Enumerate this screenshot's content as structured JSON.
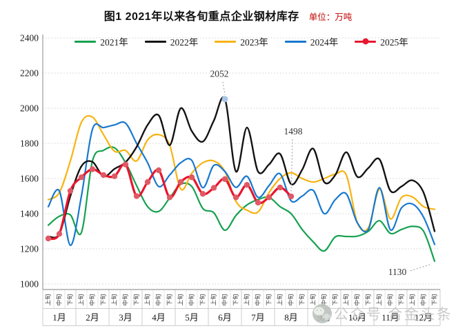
{
  "figure": {
    "title": "图1  2021年以来各旬重点企业钢材库存",
    "unit_label": "单位：万吨"
  },
  "watermark": {
    "icon": "wechat-icon",
    "text": "公众号 合金头条",
    "color": "#c3c6c3"
  },
  "style": {
    "grid_color": "#cfcfcf",
    "axis_color": "#9b9b9b",
    "band_line_color": "#cccccc",
    "cell_line_color": "#dedede",
    "tick_text_color": "#3a3a3a",
    "label_text_color": "#1a1a1a",
    "annotation_text_color": "#333333",
    "leader_color": "#999999"
  },
  "chart_data": {
    "type": "line",
    "title": "图1 2021年以来各旬重点企业钢材库存",
    "unit": "万吨",
    "ylabel": "",
    "xlabel": "",
    "ylim": [
      1000,
      2400
    ],
    "ytick_step": 200,
    "yticks": [
      "2400",
      "2200",
      "2000",
      "1800",
      "1600",
      "1400",
      "1200",
      "1000"
    ],
    "grid": "horizontal-dotted",
    "legend_position": "top-center",
    "months": [
      "1月",
      "2月",
      "3月",
      "4月",
      "5月",
      "6月",
      "7月",
      "8月",
      "9月",
      "10月",
      "11月",
      "12月"
    ],
    "periods": [
      "上旬",
      "中旬",
      "下旬"
    ],
    "series": [
      {
        "name": "2021年",
        "color": "#15a14f",
        "values": [
          1335,
          1385,
          1393,
          1293,
          1700,
          1760,
          1775,
          1690,
          1560,
          1440,
          1413,
          1490,
          1567,
          1555,
          1430,
          1405,
          1306,
          1390,
          1450,
          1480,
          1493,
          1440,
          1400,
          1310,
          1240,
          1188,
          1268,
          1270,
          1272,
          1300,
          1360,
          1288,
          1310,
          1328,
          1300,
          1130
        ]
      },
      {
        "name": "2022年",
        "color": "#131313",
        "values": [
          1270,
          1285,
          1500,
          1670,
          1695,
          1612,
          1655,
          1693,
          1780,
          1905,
          1960,
          1790,
          2000,
          1870,
          1810,
          1930,
          2052,
          1640,
          1890,
          1640,
          1680,
          1740,
          1568,
          1650,
          1770,
          1580,
          1620,
          1750,
          1610,
          1660,
          1710,
          1530,
          1555,
          1590,
          1520,
          1300
        ]
      },
      {
        "name": "2023年",
        "color": "#f7b312",
        "values": [
          1480,
          1520,
          1700,
          1920,
          1950,
          1850,
          1755,
          1760,
          1700,
          1820,
          1850,
          1790,
          1540,
          1630,
          1690,
          1700,
          1640,
          1470,
          1420,
          1410,
          1520,
          1600,
          1633,
          1600,
          1580,
          1600,
          1625,
          1620,
          1350,
          1320,
          1540,
          1370,
          1492,
          1495,
          1440,
          1425
        ]
      },
      {
        "name": "2024年",
        "color": "#1778cf",
        "values": [
          1440,
          1530,
          1220,
          1500,
          1880,
          1890,
          1905,
          1915,
          1800,
          1690,
          1555,
          1620,
          1690,
          1703,
          1548,
          1675,
          1640,
          1550,
          1613,
          1493,
          1560,
          1627,
          1473,
          1500,
          1533,
          1400,
          1480,
          1513,
          1348,
          1310,
          1548,
          1308,
          1433,
          1455,
          1380,
          1225
        ]
      },
      {
        "name": "2025年",
        "color": "#e8162e",
        "marker": "circle",
        "marker_color": "#df5a66",
        "values": [
          1259,
          1285,
          1530,
          1607,
          1653,
          1620,
          1613,
          1680,
          1500,
          1580,
          1647,
          1493,
          1580,
          1607,
          1513,
          1547,
          1597,
          1493,
          1564,
          1463,
          1493,
          1549,
          1498
        ]
      }
    ],
    "annotations": [
      {
        "text": "2052",
        "series": "2022年",
        "index": 16,
        "highlight_marker": true,
        "marker_color": "#a9c6e8",
        "text_dx": -8,
        "text_dy": -32,
        "leader": [
          [
            -3,
            -25
          ],
          [
            0,
            -6
          ]
        ]
      },
      {
        "text": "1498",
        "series": "2025年",
        "index": 22,
        "highlight_marker": false,
        "text_dx": 3,
        "text_dy": -90,
        "leader": [
          [
            2,
            -83
          ],
          [
            0,
            -7
          ]
        ]
      },
      {
        "text": "1130",
        "series": "2021年",
        "index": 35,
        "highlight_marker": false,
        "text_dx": -54,
        "text_dy": 20,
        "leader": [
          [
            -35,
            14
          ],
          [
            -4,
            4
          ]
        ]
      }
    ]
  }
}
